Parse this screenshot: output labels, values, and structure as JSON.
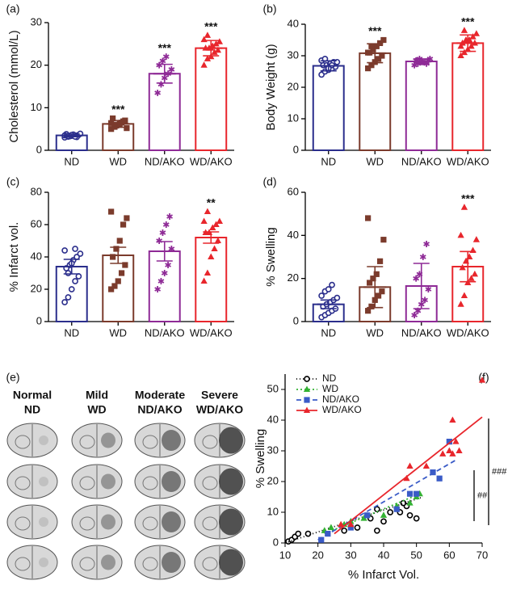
{
  "chart_data": [
    {
      "type": "bar",
      "panel_label": "(a)",
      "y_label": "Cholesterol (mmol/L)",
      "categories": [
        "ND",
        "WD",
        "ND/AKO",
        "WD/AKO"
      ],
      "values": [
        3.5,
        6.2,
        18,
        24
      ],
      "errors": [
        0.3,
        0.8,
        2.2,
        1.8
      ],
      "colors": [
        "#2b2e8c",
        "#7b3b2c",
        "#8e2a96",
        "#e8262c"
      ],
      "markers": [
        "circle",
        "square",
        "asterisk",
        "triangle"
      ],
      "points": [
        [
          3.0,
          3.2,
          3.4,
          3.5,
          3.6,
          3.8,
          3.3,
          3.7,
          3.1,
          3.9,
          3.5,
          3.4,
          3.6,
          3.2
        ],
        [
          5.0,
          5.5,
          6.0,
          6.5,
          7.0,
          7.5,
          5.8,
          6.2,
          6.8,
          5.2,
          6.4,
          6.0
        ],
        [
          13.5,
          15.5,
          17,
          18,
          19,
          20,
          21,
          22
        ],
        [
          20,
          21.5,
          22,
          23,
          23.5,
          24,
          24,
          24.5,
          25,
          25.5,
          26,
          27,
          24
        ]
      ],
      "significance": [
        null,
        "***",
        "***",
        "***"
      ],
      "ylim": [
        0,
        30
      ],
      "yticks": [
        0,
        10,
        20,
        30
      ]
    },
    {
      "type": "bar",
      "panel_label": "(b)",
      "y_label": "Body Weight (g)",
      "categories": [
        "ND",
        "WD",
        "ND/AKO",
        "WD/AKO"
      ],
      "values": [
        26.8,
        30.8,
        28.2,
        34
      ],
      "errors": [
        1.6,
        3,
        0.8,
        2.6
      ],
      "colors": [
        "#2b2e8c",
        "#7b3b2c",
        "#8e2a96",
        "#e8262c"
      ],
      "markers": [
        "circle",
        "square",
        "asterisk",
        "triangle"
      ],
      "points": [
        [
          24,
          25,
          25.5,
          26,
          26.5,
          27,
          27,
          27.5,
          28,
          28,
          28.5,
          29,
          26,
          27
        ],
        [
          26,
          27,
          28,
          29,
          30,
          31,
          32,
          33,
          34,
          35,
          31,
          33
        ],
        [
          27,
          27.5,
          28,
          28,
          28.5,
          28.5,
          29,
          28,
          27.5,
          29
        ],
        [
          30,
          31,
          32,
          33,
          34,
          34,
          35,
          35,
          36,
          37,
          33,
          38
        ]
      ],
      "significance": [
        null,
        "***",
        null,
        "***"
      ],
      "ylim": [
        0,
        40
      ],
      "yticks": [
        0,
        10,
        20,
        30,
        40
      ]
    },
    {
      "type": "bar",
      "panel_label": "(c)",
      "y_label": "% Infarct vol.",
      "categories": [
        "ND",
        "WD",
        "ND/AKO",
        "WD/AKO"
      ],
      "values": [
        34,
        41,
        43.5,
        52
      ],
      "errors": [
        4.5,
        5,
        6,
        3.5
      ],
      "colors": [
        "#2b2e8c",
        "#7b3b2c",
        "#8e2a96",
        "#e8262c"
      ],
      "markers": [
        "circle",
        "square",
        "asterisk",
        "triangle"
      ],
      "points": [
        [
          12,
          15,
          20,
          25,
          28,
          33,
          35,
          38,
          40,
          42,
          44,
          30,
          36,
          45
        ],
        [
          20,
          22,
          25,
          30,
          35,
          40,
          45,
          50,
          60,
          64,
          68
        ],
        [
          20,
          25,
          30,
          35,
          45,
          50,
          55,
          60,
          65
        ],
        [
          25,
          30,
          40,
          45,
          50,
          55,
          55,
          58,
          60,
          62,
          62,
          68
        ]
      ],
      "significance": [
        null,
        null,
        null,
        "**"
      ],
      "ylim": [
        0,
        80
      ],
      "yticks": [
        0,
        20,
        40,
        60,
        80
      ]
    },
    {
      "type": "bar",
      "panel_label": "(d)",
      "y_label": "% Swelling",
      "categories": [
        "ND",
        "WD",
        "ND/AKO",
        "WD/AKO"
      ],
      "values": [
        8,
        16,
        16.5,
        25.5
      ],
      "errors": [
        2,
        9.5,
        10.5,
        7
      ],
      "colors": [
        "#2b2e8c",
        "#7b3b2c",
        "#8e2a96",
        "#e8262c"
      ],
      "markers": [
        "circle",
        "square",
        "asterisk",
        "triangle"
      ],
      "points": [
        [
          2,
          3,
          4,
          5,
          6,
          7,
          8,
          9,
          10,
          11,
          12,
          14,
          15,
          17
        ],
        [
          5,
          7,
          10,
          12,
          14,
          18,
          20,
          22,
          28,
          38,
          48
        ],
        [
          3,
          5,
          8,
          10,
          15,
          20,
          22,
          30,
          36
        ],
        [
          8,
          12,
          18,
          20,
          22,
          25,
          28,
          30,
          33,
          38,
          40,
          53
        ]
      ],
      "significance": [
        null,
        null,
        null,
        "***"
      ],
      "ylim": [
        0,
        60
      ],
      "yticks": [
        0,
        20,
        40,
        60
      ]
    },
    {
      "type": "scatter",
      "panel_label": "(f)",
      "x_label": "% Infarct Vol.",
      "y_label": "% Swelling",
      "xlim": [
        10,
        70
      ],
      "xticks": [
        10,
        20,
        30,
        40,
        50,
        60,
        70
      ],
      "ylim": [
        0,
        55
      ],
      "yticks": [
        0,
        10,
        20,
        30,
        40,
        50
      ],
      "legend": "upper left",
      "annotations": [
        "##",
        "###"
      ],
      "series": [
        {
          "name": "ND",
          "color": "#000000",
          "marker": "circle",
          "dash": "1 3",
          "x": [
            11,
            12,
            13,
            14,
            17,
            28,
            32,
            36,
            38,
            38,
            40,
            42,
            45,
            47,
            48,
            50,
            46
          ],
          "y": [
            0.5,
            1,
            2,
            3,
            3,
            4,
            5,
            8,
            4,
            11,
            7,
            10,
            10,
            12,
            9,
            8,
            13
          ],
          "fit_x": [
            10,
            52
          ],
          "fit_y": [
            0,
            15
          ]
        },
        {
          "name": "WD",
          "color": "#33b233",
          "marker": "triangle",
          "dash": "2 3",
          "x": [
            22,
            24,
            28,
            30,
            34,
            40,
            44,
            48,
            50,
            51
          ],
          "y": [
            4,
            5,
            6,
            7,
            8,
            9,
            12,
            13,
            15,
            16
          ],
          "fit_x": [
            22,
            51
          ],
          "fit_y": [
            3,
            16
          ]
        },
        {
          "name": "ND/AKO",
          "color": "#3a5bc7",
          "marker": "square",
          "dash": "6 4",
          "x": [
            21,
            23,
            30,
            35,
            44,
            48,
            50,
            55,
            57,
            60
          ],
          "y": [
            1,
            3,
            5,
            9,
            11,
            16,
            16,
            23,
            21,
            33
          ],
          "fit_x": [
            20,
            62
          ],
          "fit_y": [
            1,
            27
          ]
        },
        {
          "name": "WD/AKO",
          "color": "#e8262c",
          "marker": "triangle",
          "dash": "none",
          "x": [
            27,
            30,
            47,
            48,
            53,
            60,
            61,
            62,
            61,
            63,
            70,
            58
          ],
          "y": [
            6,
            6,
            21,
            25,
            25,
            30,
            40,
            33,
            29,
            30,
            53,
            29
          ],
          "fit_x": [
            25,
            70
          ],
          "fit_y": [
            3,
            41
          ]
        }
      ]
    }
  ],
  "image_panel": {
    "panel_label": "(e)",
    "columns": [
      {
        "severity": "Normal",
        "group": "ND"
      },
      {
        "severity": "Mild",
        "group": "WD"
      },
      {
        "severity": "Moderate",
        "group": "ND/AKO"
      },
      {
        "severity": "Severe",
        "group": "WD/AKO"
      }
    ]
  }
}
